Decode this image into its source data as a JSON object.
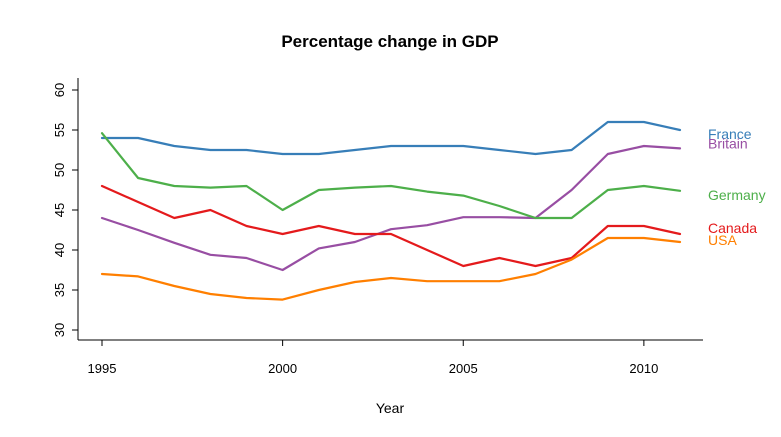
{
  "chart_data": {
    "type": "line",
    "title": "Percentage change in GDP",
    "xlabel": "Year",
    "ylabel": "",
    "x": [
      1995,
      1996,
      1997,
      1998,
      1999,
      2000,
      2001,
      2002,
      2003,
      2004,
      2005,
      2006,
      2007,
      2008,
      2009,
      2010,
      2011
    ],
    "xlim": [
      1995,
      2011
    ],
    "ylim": [
      30,
      60
    ],
    "x_ticks": [
      1995,
      2000,
      2005,
      2010
    ],
    "y_ticks": [
      30,
      35,
      40,
      45,
      50,
      55,
      60
    ],
    "grid": false,
    "legend": "direct labels at right end of lines",
    "series": [
      {
        "name": "France",
        "color": "#377eb8",
        "values": [
          54,
          54,
          53,
          52.5,
          52.5,
          52,
          52,
          52.5,
          53,
          53,
          53,
          52.5,
          52,
          52.5,
          56,
          56,
          55
        ]
      },
      {
        "name": "Britain",
        "color": "#984ea3",
        "values": [
          44,
          42.5,
          40.9,
          39.4,
          39,
          37.5,
          40.2,
          41,
          42.6,
          43.1,
          44.1,
          44.1,
          44,
          47.5,
          52,
          53,
          52.7
        ]
      },
      {
        "name": "Germany",
        "color": "#4daf4a",
        "values": [
          54.6,
          49,
          48,
          47.8,
          48,
          45,
          47.5,
          47.8,
          48,
          47.3,
          46.8,
          45.5,
          44,
          44,
          47.5,
          48,
          47.4
        ]
      },
      {
        "name": "Canada",
        "color": "#e41a1c",
        "values": [
          48,
          46,
          44,
          45,
          43,
          42,
          43,
          42,
          42,
          40,
          38,
          39,
          38,
          39,
          43,
          43,
          42
        ]
      },
      {
        "name": "USA",
        "color": "#ff7f00",
        "values": [
          37,
          36.7,
          35.5,
          34.5,
          34,
          33.8,
          35,
          36,
          36.5,
          36.1,
          36.1,
          36.1,
          37,
          38.8,
          41.5,
          41.5,
          41
        ]
      }
    ]
  }
}
